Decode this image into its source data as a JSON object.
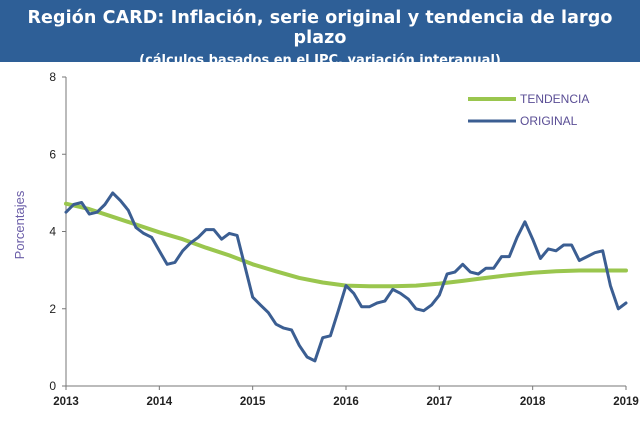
{
  "header": {
    "title": "Región CARD: Inflación, serie original y tendencia de largo plazo",
    "subtitle": "(cálculos basados en el IPC, variación interanual)"
  },
  "chart_data": {
    "type": "line",
    "title": "Región CARD: Inflación, serie original y tendencia de largo plazo",
    "subtitle": "(cálculos basados en el IPC, variación interanual)",
    "xlabel": "",
    "ylabel": "Porcentajes",
    "xlim": [
      2013.0,
      2019.0
    ],
    "ylim": [
      0,
      8
    ],
    "x_ticks": [
      "2013",
      "2014",
      "2015",
      "2016",
      "2017",
      "2018",
      "2019"
    ],
    "y_ticks": [
      "0",
      "2",
      "4",
      "6",
      "8"
    ],
    "grid": false,
    "legend_position": "top-right",
    "series": [
      {
        "name": "TENDENCIA",
        "color": "#9ac64e",
        "x": [
          2013.0,
          2013.25,
          2013.5,
          2013.75,
          2014.0,
          2014.25,
          2014.5,
          2014.75,
          2015.0,
          2015.25,
          2015.5,
          2015.75,
          2016.0,
          2016.25,
          2016.5,
          2016.75,
          2017.0,
          2017.25,
          2017.5,
          2017.75,
          2018.0,
          2018.25,
          2018.5,
          2018.75,
          2019.0
        ],
        "y": [
          4.72,
          4.58,
          4.38,
          4.18,
          3.98,
          3.8,
          3.58,
          3.38,
          3.15,
          2.97,
          2.8,
          2.68,
          2.6,
          2.58,
          2.58,
          2.6,
          2.65,
          2.72,
          2.8,
          2.87,
          2.93,
          2.97,
          2.99,
          2.99,
          2.99
        ]
      },
      {
        "name": "ORIGINAL",
        "color": "#3b5e92",
        "x": [
          2013.0,
          2013.083,
          2013.167,
          2013.25,
          2013.333,
          2013.417,
          2013.5,
          2013.583,
          2013.667,
          2013.75,
          2013.833,
          2013.917,
          2014.0,
          2014.083,
          2014.167,
          2014.25,
          2014.333,
          2014.417,
          2014.5,
          2014.583,
          2014.667,
          2014.75,
          2014.833,
          2014.917,
          2015.0,
          2015.083,
          2015.167,
          2015.25,
          2015.333,
          2015.417,
          2015.5,
          2015.583,
          2015.667,
          2015.75,
          2015.833,
          2015.917,
          2016.0,
          2016.083,
          2016.167,
          2016.25,
          2016.333,
          2016.417,
          2016.5,
          2016.583,
          2016.667,
          2016.75,
          2016.833,
          2016.917,
          2017.0,
          2017.083,
          2017.167,
          2017.25,
          2017.333,
          2017.417,
          2017.5,
          2017.583,
          2017.667,
          2017.75,
          2017.833,
          2017.917,
          2018.0,
          2018.083,
          2018.167,
          2018.25,
          2018.333,
          2018.417,
          2018.5,
          2018.583,
          2018.667,
          2018.75,
          2018.833,
          2018.917,
          2019.0
        ],
        "y": [
          4.5,
          4.7,
          4.75,
          4.45,
          4.5,
          4.7,
          5.0,
          4.8,
          4.55,
          4.1,
          3.95,
          3.85,
          3.5,
          3.15,
          3.2,
          3.5,
          3.7,
          3.85,
          4.05,
          4.05,
          3.8,
          3.95,
          3.9,
          3.1,
          2.3,
          2.1,
          1.9,
          1.6,
          1.5,
          1.45,
          1.05,
          0.75,
          0.65,
          1.25,
          1.3,
          1.95,
          2.6,
          2.4,
          2.05,
          2.05,
          2.15,
          2.2,
          2.5,
          2.4,
          2.25,
          2.0,
          1.95,
          2.1,
          2.35,
          2.9,
          2.95,
          3.15,
          2.95,
          2.9,
          3.05,
          3.05,
          3.35,
          3.35,
          3.85,
          4.25,
          3.8,
          3.3,
          3.55,
          3.5,
          3.65,
          3.65,
          3.25,
          3.35,
          3.45,
          3.5,
          2.6,
          2.0,
          2.15
        ]
      }
    ]
  }
}
